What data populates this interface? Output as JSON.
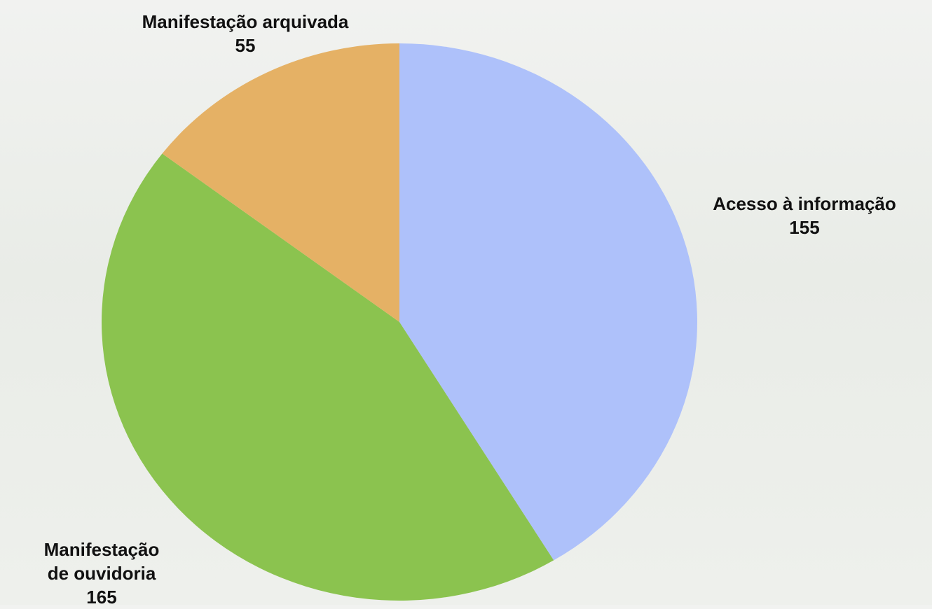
{
  "chart_data": {
    "type": "pie",
    "categories": [
      "Acesso à informação",
      "Manifestação de ouvidoria",
      "Manifestação arquivada"
    ],
    "values": [
      155,
      165,
      55
    ],
    "colors": [
      "#aec1fa",
      "#8bc34f",
      "#e5b165"
    ]
  }
}
